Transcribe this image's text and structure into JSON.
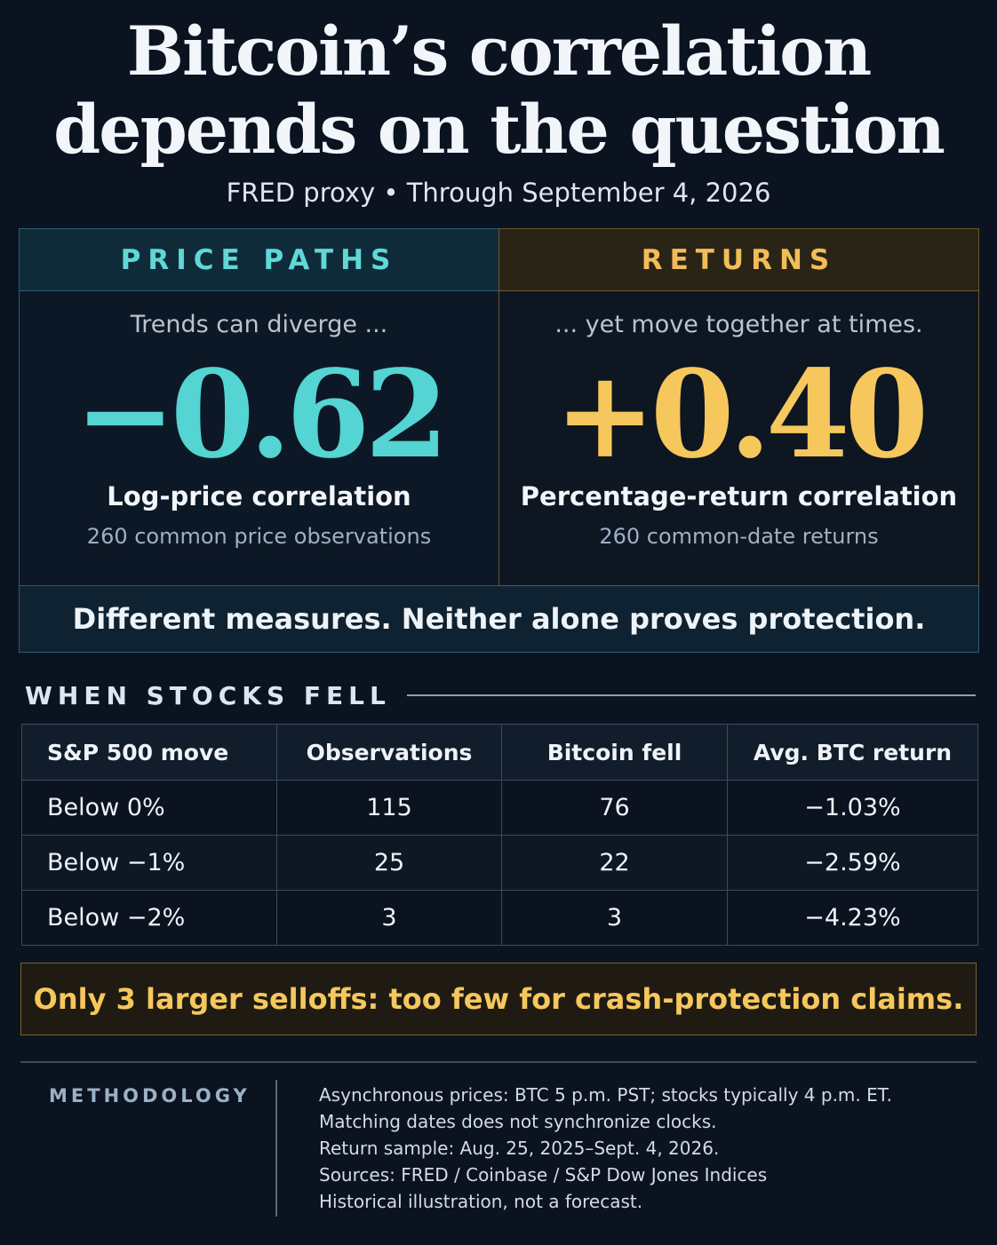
{
  "header": {
    "title_line1": "Bitcoin’s correlation",
    "title_line2": "depends on the question",
    "subtitle": "FRED proxy • Through September 4, 2026"
  },
  "cards": {
    "price_paths": {
      "heading": "PRICE PATHS",
      "lead": "Trends can diverge ...",
      "value": "−0.62",
      "metric": "Log-price correlation",
      "observations": "260 common price observations"
    },
    "returns": {
      "heading": "RETURNS",
      "lead": "... yet move together at times.",
      "value": "+0.40",
      "metric": "Percentage-return correlation",
      "observations": "260 common-date returns"
    },
    "banner": "Different measures. Neither alone proves protection."
  },
  "colors": {
    "background": "#0b1320",
    "teal": "#54d4d2",
    "gold": "#f6c75c"
  },
  "section": {
    "title": "WHEN STOCKS FELL"
  },
  "table": {
    "headers": [
      "S&P 500 move",
      "Observations",
      "Bitcoin fell",
      "Avg. BTC return"
    ],
    "rows": [
      [
        "Below 0%",
        "115",
        "76",
        "−1.03%"
      ],
      [
        "Below −1%",
        "25",
        "22",
        "−2.59%"
      ],
      [
        "Below −2%",
        "3",
        "3",
        "−4.23%"
      ]
    ]
  },
  "callout": "Only 3 larger selloffs: too few for crash-protection claims.",
  "methodology": {
    "label": "METHODOLOGY",
    "lines": [
      "Asynchronous prices: BTC 5 p.m. PST; stocks typically 4 p.m. ET.",
      "Matching dates does not synchronize clocks.",
      "Return sample: Aug. 25, 2025–Sept. 4, 2026.",
      "Sources: FRED / Coinbase / S&P Dow Jones Indices",
      "Historical illustration, not a forecast."
    ]
  }
}
